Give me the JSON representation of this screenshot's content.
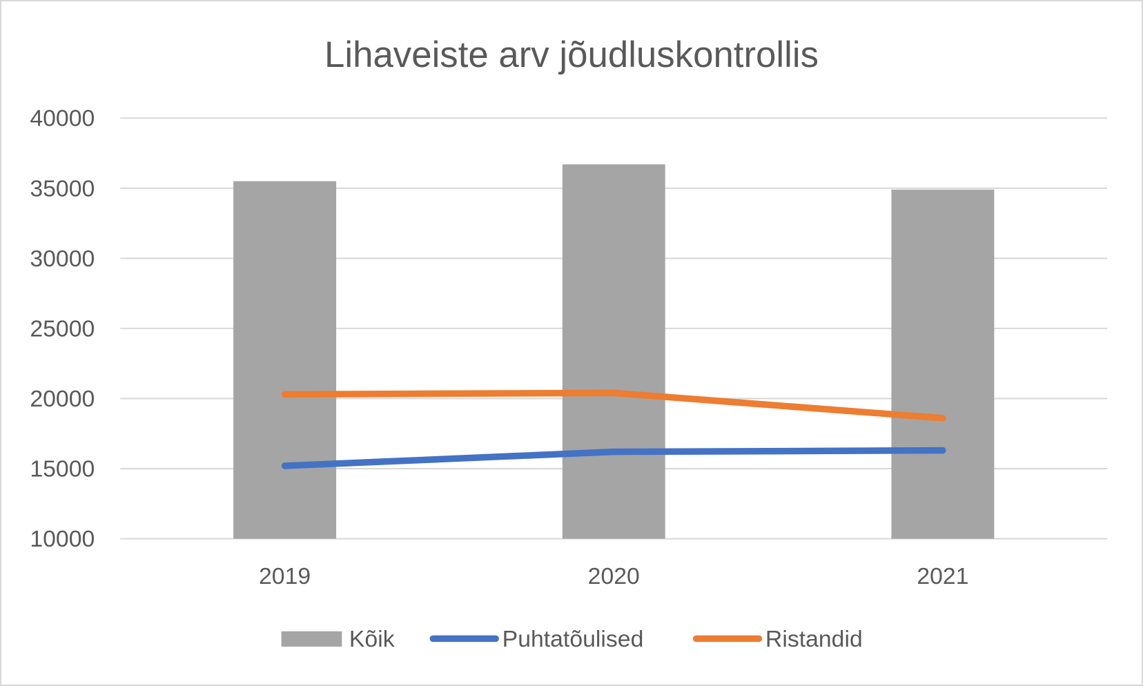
{
  "chart_data": {
    "type": "bar+line",
    "title": "Lihaveiste arv jõudluskontrollis",
    "categories": [
      "2019",
      "2020",
      "2021"
    ],
    "ylim": [
      10000,
      40000
    ],
    "yticks": [
      "10000",
      "15000",
      "20000",
      "25000",
      "30000",
      "35000",
      "40000"
    ],
    "grid": true,
    "legend_position": "bottom",
    "series": [
      {
        "name": "Kõik",
        "type": "bar",
        "color": "#A5A5A5",
        "values": [
          35500,
          36700,
          34900
        ]
      },
      {
        "name": "Puhtatõulised",
        "type": "line",
        "color": "#4472C4",
        "values": [
          15200,
          16200,
          16300
        ]
      },
      {
        "name": "Ristandid",
        "type": "line",
        "color": "#ED7D31",
        "values": [
          20300,
          20400,
          18600
        ]
      }
    ]
  }
}
